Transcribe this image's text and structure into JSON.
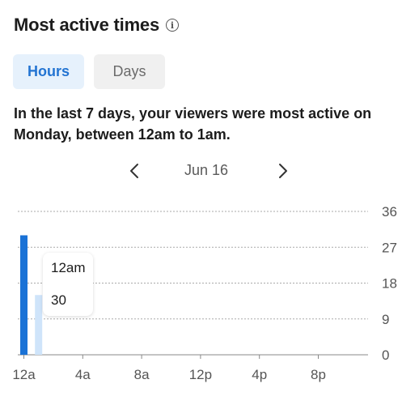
{
  "header": {
    "title": "Most active times",
    "info_icon": "info-icon"
  },
  "tabs": [
    {
      "label": "Hours",
      "active": true
    },
    {
      "label": "Days",
      "active": false
    }
  ],
  "summary": "In the last 7 days, your viewers were most active on Monday, between 12am to 1am.",
  "date_nav": {
    "label": "Jun 16",
    "prev_icon": "chevron-left-icon",
    "next_icon": "chevron-right-icon"
  },
  "tooltip": {
    "time": "12am",
    "value": "30"
  },
  "colors": {
    "accent": "#2374d2",
    "bar_primary": "#1a72d6",
    "bar_secondary": "#cfe4fa",
    "grid": "#aaaaaa"
  },
  "chart_data": {
    "type": "bar",
    "x_tick_labels": [
      "12a",
      "4a",
      "8a",
      "12p",
      "4p",
      "8p"
    ],
    "y_tick_labels": [
      "0",
      "9",
      "18",
      "27",
      "36"
    ],
    "ylim": [
      0,
      36
    ],
    "grid": true,
    "series": [
      {
        "values": [
          30,
          15
        ]
      }
    ]
  }
}
